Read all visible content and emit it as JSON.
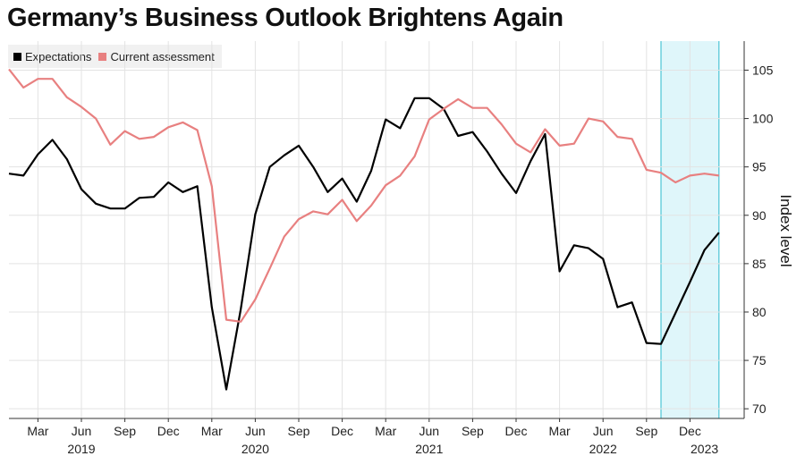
{
  "chart_data": {
    "type": "line",
    "title": "Germany’s Business Outlook Brightens Again",
    "ylabel": "Index level",
    "ylim": [
      69,
      108
    ],
    "yticks": [
      70,
      75,
      80,
      85,
      90,
      95,
      100,
      105
    ],
    "x_month_ticks": [
      {
        "label": "Mar",
        "month": 2
      },
      {
        "label": "Jun",
        "month": 5
      },
      {
        "label": "Sep",
        "month": 8
      },
      {
        "label": "Dec",
        "month": 11
      },
      {
        "label": "Mar",
        "month": 14
      },
      {
        "label": "Jun",
        "month": 17
      },
      {
        "label": "Sep",
        "month": 20
      },
      {
        "label": "Dec",
        "month": 23
      },
      {
        "label": "Mar",
        "month": 26
      },
      {
        "label": "Jun",
        "month": 29
      },
      {
        "label": "Sep",
        "month": 32
      },
      {
        "label": "Dec",
        "month": 35
      },
      {
        "label": "Mar",
        "month": 38
      },
      {
        "label": "Jun",
        "month": 41
      },
      {
        "label": "Sep",
        "month": 44
      },
      {
        "label": "Dec",
        "month": 47
      }
    ],
    "x_year_ticks": [
      {
        "label": "2019",
        "month": 5
      },
      {
        "label": "2020",
        "month": 17
      },
      {
        "label": "2021",
        "month": 29
      },
      {
        "label": "2022",
        "month": 41
      },
      {
        "label": "2023",
        "month": 48
      }
    ],
    "x_start": "2019-01",
    "shaded_region": {
      "from_month": 45,
      "to_month": 49,
      "color": "#dff6fa",
      "edge_color": "#4cc4d4"
    },
    "series": [
      {
        "name": "Expectations",
        "color": "#000000",
        "values": [
          94.3,
          94.1,
          96.3,
          97.8,
          95.8,
          92.7,
          91.2,
          90.7,
          90.7,
          91.8,
          91.9,
          93.4,
          92.4,
          93.0,
          80.5,
          72.0,
          80.3,
          90.1,
          95.0,
          96.2,
          97.2,
          95.0,
          92.4,
          93.8,
          91.4,
          94.6,
          99.9,
          99.0,
          102.1,
          102.1,
          101.0,
          98.2,
          98.6,
          96.6,
          94.3,
          92.3,
          95.6,
          98.4,
          84.2,
          86.9,
          86.6,
          85.5,
          80.5,
          81.0,
          76.8,
          76.7,
          79.9,
          83.1,
          86.4,
          88.2
        ]
      },
      {
        "name": "Current assessment",
        "color": "#e88080",
        "values": [
          105.1,
          103.2,
          104.1,
          104.1,
          102.2,
          101.2,
          100.0,
          97.3,
          98.7,
          97.9,
          98.1,
          99.1,
          99.6,
          98.8,
          93.0,
          79.2,
          79.0,
          81.3,
          84.5,
          87.8,
          89.6,
          90.4,
          90.1,
          91.6,
          89.4,
          91.0,
          93.1,
          94.1,
          96.1,
          99.9,
          101.0,
          102.0,
          101.1,
          101.1,
          99.4,
          97.4,
          96.5,
          98.9,
          97.2,
          97.4,
          100.0,
          99.7,
          98.1,
          97.9,
          94.7,
          94.4,
          93.4,
          94.1,
          94.3,
          94.1
        ]
      }
    ]
  }
}
